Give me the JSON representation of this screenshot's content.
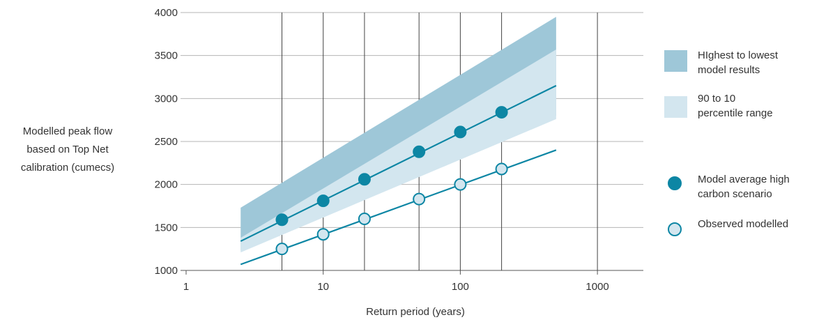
{
  "chart_data": {
    "type": "line",
    "title": "",
    "xlabel": "Return period (years)",
    "ylabel_lines": [
      "Modelled peak flow",
      "based on Top Net",
      "calibration (cumecs)"
    ],
    "x_scale": "log",
    "xlim": [
      1,
      2000
    ],
    "ylim": [
      1000,
      4000
    ],
    "x_ticks": [
      1,
      10,
      100,
      1000
    ],
    "x_tick_labels": [
      "1",
      "10",
      "100",
      "1000"
    ],
    "y_ticks": [
      1000,
      1500,
      2000,
      2500,
      3000,
      3500,
      4000
    ],
    "y_tick_labels": [
      "1000",
      "1500",
      "2000",
      "2500",
      "3000",
      "3500",
      "4000"
    ],
    "vertical_gridlines_at": [
      5,
      10,
      20,
      50,
      100,
      200,
      1000
    ],
    "bands": [
      {
        "name": "HIghest to lowest model results",
        "color": "#9ec7d8",
        "x": [
          2.5,
          500
        ],
        "upper": [
          1730,
          3950
        ],
        "lower": [
          1230,
          2800
        ]
      },
      {
        "name": "90 to 10 percentile range",
        "color": "#d3e6ef",
        "x": [
          2.5,
          500
        ],
        "upper": [
          1380,
          3570
        ],
        "lower": [
          1210,
          2760
        ]
      }
    ],
    "series": [
      {
        "name": "Model average high carbon scenario",
        "color": "#0d86a4",
        "marker": "filled",
        "line_x": [
          2.5,
          500
        ],
        "line_y": [
          1340,
          3150
        ],
        "x": [
          5,
          10,
          20,
          50,
          100,
          200
        ],
        "y": [
          1590,
          1810,
          2060,
          2380,
          2610,
          2840
        ]
      },
      {
        "name": "Observed modelled",
        "color": "#0d86a4",
        "marker": "hollow",
        "line_x": [
          2.5,
          500
        ],
        "line_y": [
          1070,
          2400
        ],
        "x": [
          5,
          10,
          20,
          50,
          100,
          200
        ],
        "y": [
          1250,
          1420,
          1600,
          1830,
          2000,
          2180
        ]
      }
    ],
    "legend_placement": "right",
    "legend": [
      {
        "lines": [
          "HIghest to lowest",
          "model results"
        ],
        "kind": "band",
        "color": "#9ec7d8"
      },
      {
        "lines": [
          "90 to 10",
          "percentile range"
        ],
        "kind": "band",
        "color": "#d3e6ef"
      },
      {
        "lines": [
          "Model average high",
          "carbon scenario"
        ],
        "kind": "filled",
        "color": "#0d86a4"
      },
      {
        "lines": [
          "Observed modelled"
        ],
        "kind": "hollow",
        "color": "#0d86a4"
      }
    ],
    "grid": "horizontal and selected vertical"
  }
}
